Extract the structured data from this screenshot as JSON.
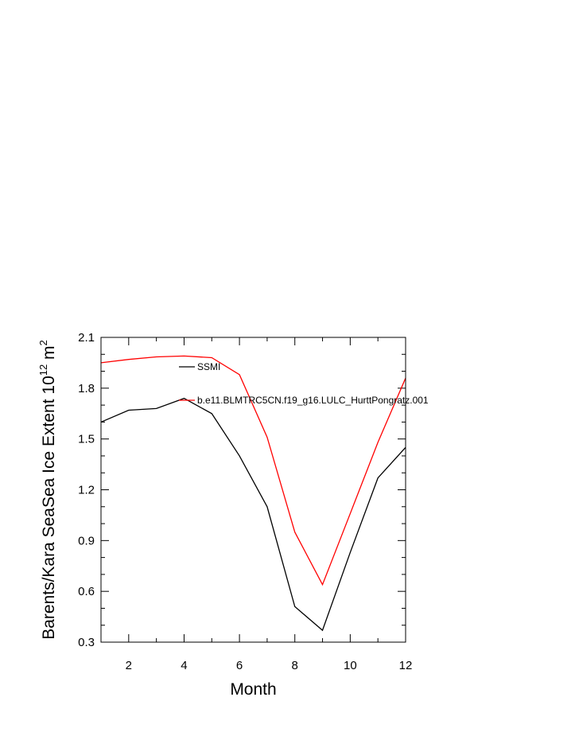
{
  "chart_data": {
    "type": "line",
    "title": "",
    "xlabel": "Month",
    "ylabel": {
      "main": "Barents/Kara SeaSea Ice Extent 10",
      "sup": "12",
      "unit": " m",
      "unit_sup": "2"
    },
    "xlim": [
      1,
      12
    ],
    "ylim": [
      0.3,
      2.1
    ],
    "xticks": [
      2,
      4,
      6,
      8,
      10,
      12
    ],
    "xtick_labels": [
      "2",
      "4",
      "6",
      "8",
      "10",
      "12"
    ],
    "yticks": [
      0.3,
      0.6,
      0.9,
      1.2,
      1.5,
      1.8,
      2.1
    ],
    "ytick_labels": [
      "0.3",
      "0.6",
      "0.9",
      "1.2",
      "1.5",
      "1.8",
      "2.1"
    ],
    "grid": false,
    "legend_position": "top-center",
    "x": [
      1,
      2,
      3,
      4,
      5,
      6,
      7,
      8,
      9,
      10,
      11,
      12
    ],
    "series": [
      {
        "name": "SSMI",
        "color": "#000000",
        "values": [
          1.6,
          1.67,
          1.68,
          1.74,
          1.65,
          1.4,
          1.1,
          0.51,
          0.37,
          0.83,
          1.27,
          1.45
        ]
      },
      {
        "name": "b.e11.BLMTRC5CN.f19_g16.LULC_HurttPongratz.001",
        "color": "#ff0000",
        "values": [
          1.95,
          1.97,
          1.985,
          1.99,
          1.98,
          1.88,
          1.51,
          0.95,
          0.64,
          1.06,
          1.48,
          1.86
        ]
      }
    ]
  }
}
